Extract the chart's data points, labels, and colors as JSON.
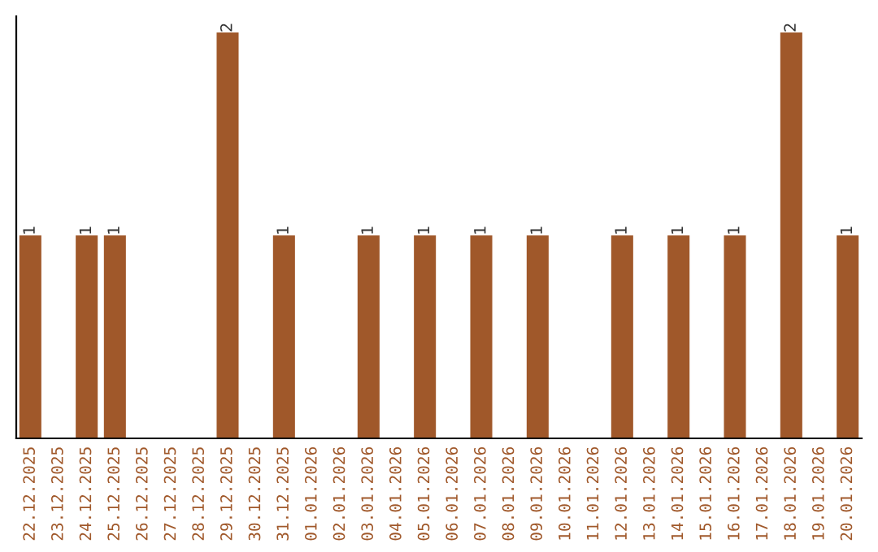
{
  "chart_data": {
    "type": "bar",
    "categories": [
      "22.12.2025",
      "23.12.2025",
      "24.12.2025",
      "25.12.2025",
      "26.12.2025",
      "27.12.2025",
      "28.12.2025",
      "29.12.2025",
      "30.12.2025",
      "31.12.2025",
      "01.01.2026",
      "02.01.2026",
      "03.01.2026",
      "04.01.2026",
      "05.01.2026",
      "06.01.2026",
      "07.01.2026",
      "08.01.2026",
      "09.01.2026",
      "10.01.2026",
      "11.01.2026",
      "12.01.2026",
      "13.01.2026",
      "14.01.2026",
      "15.01.2026",
      "16.01.2026",
      "17.01.2026",
      "18.01.2026",
      "19.01.2026",
      "20.01.2026"
    ],
    "values": [
      1,
      0,
      1,
      1,
      0,
      0,
      0,
      2,
      0,
      1,
      0,
      0,
      1,
      0,
      1,
      0,
      1,
      0,
      1,
      0,
      0,
      1,
      0,
      1,
      0,
      1,
      0,
      2,
      0,
      1
    ],
    "value_labels": [
      "1",
      null,
      "1",
      "1",
      null,
      null,
      null,
      "2",
      null,
      "1",
      null,
      null,
      "1",
      null,
      "1",
      null,
      "1",
      null,
      "1",
      null,
      null,
      "1",
      null,
      "1",
      null,
      "1",
      null,
      "2",
      null,
      "1"
    ],
    "color": "#a0582a",
    "tick_labels": "x",
    "grid": false,
    "legend": false
  }
}
